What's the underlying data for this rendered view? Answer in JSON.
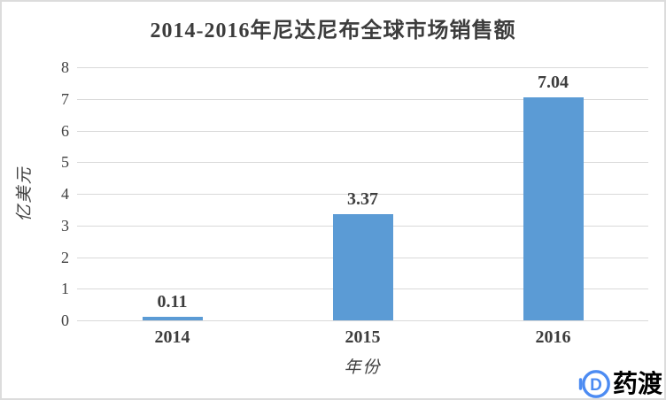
{
  "chart_data": {
    "type": "bar",
    "title": "2014-2016年尼达尼布全球市场销售额",
    "xlabel": "年份",
    "ylabel": "亿美元",
    "categories": [
      "2014",
      "2015",
      "2016"
    ],
    "values": [
      0.11,
      3.37,
      7.04
    ],
    "data_labels": [
      "0.11",
      "3.37",
      "7.04"
    ],
    "ylim": [
      0,
      8
    ],
    "ytick_step": 1,
    "yticks": [
      "0",
      "1",
      "2",
      "3",
      "4",
      "5",
      "6",
      "7",
      "8"
    ],
    "grid": true,
    "legend": false,
    "bar_color": "#5B9BD5",
    "gridline_color": "#D9D9D9",
    "text_color": "#3D3D3D"
  },
  "watermark": {
    "text": "药渡",
    "icon": "pharmacodia-logo-icon",
    "color": "#4C8BF2"
  }
}
